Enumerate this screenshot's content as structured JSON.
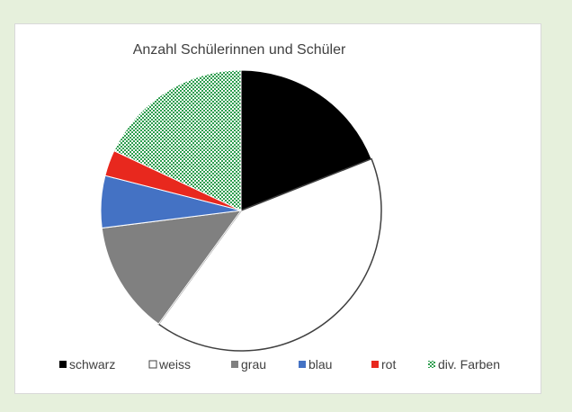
{
  "chart_data": {
    "type": "pie",
    "title": "Anzahl Schülerinnen und Schüler",
    "legend_position": "bottom",
    "categories": [
      "schwarz",
      "weiss",
      "grau",
      "blau",
      "rot",
      "div. Farben"
    ],
    "values": [
      19,
      41,
      13,
      6,
      3,
      18
    ],
    "colors": [
      "#000000",
      "#ffffff",
      "#808080",
      "#4472c4",
      "#e8281e",
      "pattern-green-check"
    ],
    "start_angle_deg": 0,
    "direction": "clockwise"
  }
}
